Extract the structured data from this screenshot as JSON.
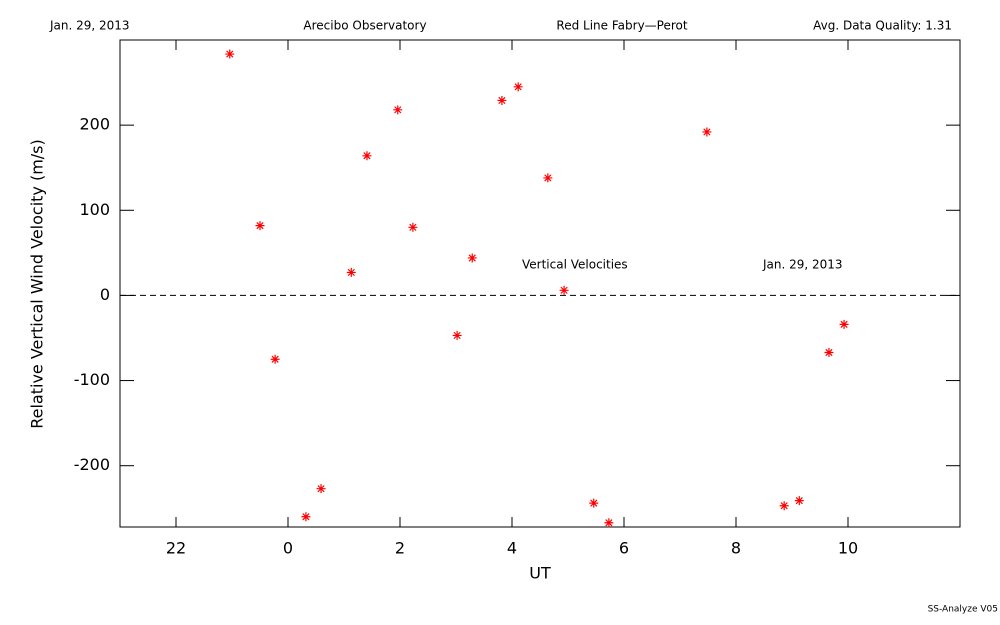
{
  "chart_data": {
    "type": "scatter",
    "header": [
      "Jan. 29, 2013",
      "Arecibo Observatory",
      "Red Line Fabry—Perot",
      "Avg. Data Quality: 1.31"
    ],
    "x_label": "UT",
    "y_label": "Relative Vertical Wind Velocity (m/s)",
    "annotations": [
      "Vertical Velocities",
      "Jan. 29, 2013"
    ],
    "footer": "SS-Analyze V05",
    "series": [
      {
        "color": "#ff0000",
        "x": [
          -1.04,
          -0.5,
          -0.23,
          0.32,
          0.59,
          1.13,
          1.41,
          1.96,
          2.23,
          3.02,
          3.29,
          3.82,
          4.11,
          4.64,
          4.93,
          5.46,
          5.73,
          7.48,
          8.86,
          9.13,
          9.66,
          9.93
        ],
        "values": [
          283.5,
          82,
          -75,
          -260,
          -227,
          27,
          164,
          218,
          80,
          -47,
          44,
          229,
          245,
          138,
          6,
          -244,
          -267,
          192,
          -247,
          -241,
          -67,
          -34
        ]
      }
    ],
    "xlim": [
      -3,
      12
    ],
    "xticks": [
      {
        "value": -2,
        "label": "22"
      },
      0,
      2,
      4,
      6,
      8,
      10
    ],
    "ylim": [
      -272,
      300
    ],
    "yticks": [
      -200,
      -100,
      0,
      100,
      200
    ],
    "reference_line": 0
  }
}
